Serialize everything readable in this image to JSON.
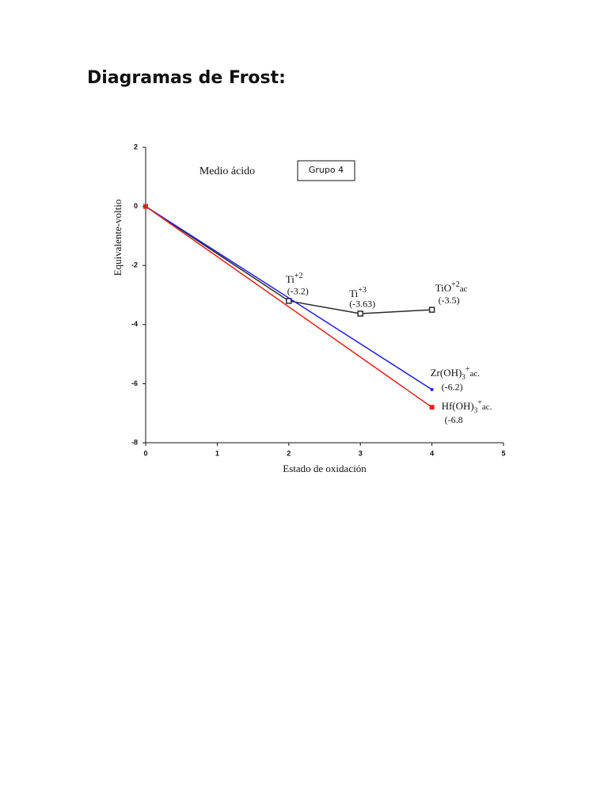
{
  "heading": "Diagramas de Frost:",
  "chart_data": {
    "type": "line",
    "xlabel": "Estado de oxidación",
    "ylabel": "Equivalente-voltio",
    "annotations": [
      "Medio ácido"
    ],
    "boxed_text": "Grupo 4",
    "xlim": [
      0,
      5
    ],
    "xticks": [
      0,
      1,
      2,
      3,
      4,
      5
    ],
    "ylim": [
      -8,
      2
    ],
    "yticks": [
      -8,
      -6,
      -4,
      -2,
      0,
      2
    ],
    "series": [
      {
        "color": "#2a2a2a",
        "marker": "hollow-square",
        "x": [
          0,
          2,
          3,
          4
        ],
        "values": [
          0,
          -3.2,
          -3.63,
          -3.5
        ],
        "value_labels": [
          null,
          "(-3.2)",
          "(-3.63)",
          "(-3.5)"
        ],
        "point_labels": [
          null,
          {
            "text": "Ti",
            "sup": "+2"
          },
          {
            "text": "Ti",
            "sup": "+3"
          },
          {
            "text": "TiO",
            "sup": "+2",
            "tail": "ac"
          }
        ]
      },
      {
        "color": "#1f1fe6",
        "marker": "dot",
        "x": [
          0,
          4
        ],
        "values": [
          0,
          -6.2
        ],
        "value_labels": [
          null,
          "(-6.2)"
        ],
        "point_labels": [
          null,
          {
            "text": "Zr(OH)",
            "sub": "3",
            "sup": "+",
            "tail": "ac."
          }
        ]
      },
      {
        "color": "#e3231b",
        "marker": "filled-square",
        "x": [
          0,
          4
        ],
        "values": [
          0,
          -6.8
        ],
        "value_labels": [
          null,
          "(-6.8"
        ],
        "point_labels": [
          null,
          {
            "text": "Hf(OH)",
            "sub": "3",
            "sup": "+",
            "tail": "ac."
          }
        ]
      }
    ]
  }
}
